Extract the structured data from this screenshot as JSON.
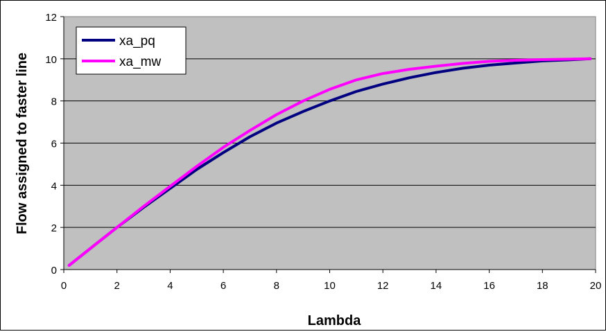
{
  "chart_data": {
    "type": "line",
    "title": "",
    "xlabel": "Lambda",
    "ylabel": "Flow assigned to faster line",
    "xlim": [
      0,
      20
    ],
    "ylim": [
      0,
      12
    ],
    "xticks": [
      0,
      2,
      4,
      6,
      8,
      10,
      12,
      14,
      16,
      18,
      20
    ],
    "yticks": [
      0,
      2,
      4,
      6,
      8,
      10,
      12
    ],
    "grid": "horizontal",
    "legend_position": "top-left",
    "plot_background": "#c0c0c0",
    "series": [
      {
        "name": "xa_pq",
        "color": "#000080",
        "x": [
          0.2,
          1,
          2,
          3,
          4,
          5,
          6,
          7,
          8,
          9,
          10,
          11,
          12,
          13,
          14,
          15,
          16,
          17,
          18,
          19,
          19.8
        ],
        "values": [
          0.2,
          1.0,
          2.0,
          2.95,
          3.85,
          4.75,
          5.55,
          6.3,
          6.95,
          7.5,
          8.0,
          8.45,
          8.8,
          9.1,
          9.35,
          9.55,
          9.7,
          9.8,
          9.9,
          9.95,
          10.0
        ]
      },
      {
        "name": "xa_mw",
        "color": "#ff00ff",
        "x": [
          0.2,
          1,
          2,
          3,
          4,
          5,
          6,
          7,
          8,
          9,
          10,
          11,
          12,
          13,
          14,
          15,
          16,
          17,
          18,
          19,
          19.8
        ],
        "values": [
          0.2,
          1.0,
          2.0,
          3.0,
          3.95,
          4.9,
          5.8,
          6.6,
          7.35,
          8.0,
          8.55,
          9.0,
          9.3,
          9.5,
          9.65,
          9.78,
          9.88,
          9.93,
          9.96,
          9.98,
          10.0
        ]
      }
    ]
  }
}
